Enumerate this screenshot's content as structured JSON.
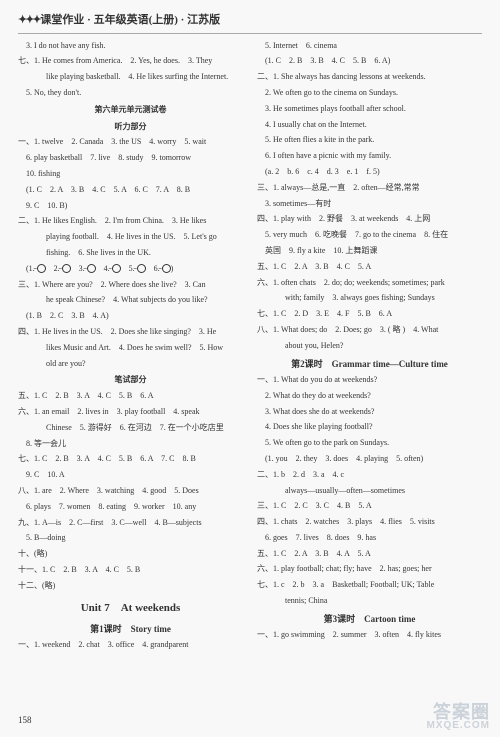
{
  "header": "课堂作业 · 五年级英语(上册) · 江苏版",
  "left": [
    {
      "cls": "line indent1",
      "t": "3. I do not have any fish."
    },
    {
      "cls": "line",
      "t": "七、1. He comes from America.　2. Yes, he does.　3. They"
    },
    {
      "cls": "line indent2",
      "t": "like playing basketball.　4. He likes surfing the Internet."
    },
    {
      "cls": "line indent1",
      "t": "5. No, they don't."
    },
    {
      "cls": "center",
      "t": "第六单元单元测试卷"
    },
    {
      "cls": "center",
      "t": "听力部分"
    },
    {
      "cls": "line",
      "t": "一、1. twelve　2. Canada　3. the US　4. worry　5. wait"
    },
    {
      "cls": "line indent1",
      "t": "6. play basketball　7. live　8. study　9. tomorrow"
    },
    {
      "cls": "line indent1",
      "t": "10. fishing"
    },
    {
      "cls": "line indent1",
      "t": "(1. C　2. A　3. B　4. C　5. A　6. C　7. A　8. B"
    },
    {
      "cls": "line indent1",
      "t": "9. C　10. B)"
    },
    {
      "cls": "line",
      "t": "二、1. He likes English.　2. I'm from China.　3. He likes"
    },
    {
      "cls": "line indent2",
      "t": "playing football.　4. He lives in the US.　5. Let's go"
    },
    {
      "cls": "line indent2",
      "t": "fishing.　6. She lives in the UK."
    },
    {
      "cls": "line indent1 faces",
      "t": ""
    },
    {
      "cls": "line",
      "t": "三、1. Where are you?　2. Where does she live?　3. Can"
    },
    {
      "cls": "line indent2",
      "t": "he speak Chinese?　4. What subjects do you like?"
    },
    {
      "cls": "line indent1",
      "t": "(1. B　2. C　3. B　4. A)"
    },
    {
      "cls": "line",
      "t": "四、1. He lives in the US.　2. Does she like singing?　3. He"
    },
    {
      "cls": "line indent2",
      "t": "likes Music and Art.　4. Does he swim well?　5. How"
    },
    {
      "cls": "line indent2",
      "t": "old are you?"
    },
    {
      "cls": "center",
      "t": "笔试部分"
    },
    {
      "cls": "line",
      "t": "五、1. C　2. B　3. A　4. C　5. B　6. A"
    },
    {
      "cls": "line",
      "t": "六、1. an email　2. lives in　3. play football　4. speak"
    },
    {
      "cls": "line indent2",
      "t": "Chinese　5. 游得好　6. 在河边　7. 在一个小吃店里"
    },
    {
      "cls": "line indent1",
      "t": "8. 等一会儿"
    },
    {
      "cls": "line",
      "t": "七、1. C　2. B　3. A　4. C　5. B　6. A　7. C　8. B"
    },
    {
      "cls": "line indent1",
      "t": "9. C　10. A"
    },
    {
      "cls": "line",
      "t": "八、1. are　2. Where　3. watching　4. good　5. Does"
    },
    {
      "cls": "line indent1",
      "t": "6. plays　7. women　8. eating　9. worker　10. any"
    },
    {
      "cls": "line",
      "t": "九、1. A—is　2. C—first　3. C—well　4. B—subjects"
    },
    {
      "cls": "line indent1",
      "t": "5. B—doing"
    },
    {
      "cls": "line",
      "t": "十、(略)"
    },
    {
      "cls": "line",
      "t": "十一、1. C　2. B　3. A　4. C　5. B"
    },
    {
      "cls": "line",
      "t": "十二、(略)"
    },
    {
      "cls": "unit-title",
      "t": "Unit 7　At weekends"
    },
    {
      "cls": "sub-title",
      "t": "第1课时　Story time"
    },
    {
      "cls": "line",
      "t": "一、1. weekend　2. chat　3. office　4. grandparent"
    }
  ],
  "right": [
    {
      "cls": "line indent1",
      "t": "5. Internet　6. cinema"
    },
    {
      "cls": "line indent1",
      "t": "(1. C　2. B　3. B　4. C　5. B　6. A)"
    },
    {
      "cls": "line",
      "t": "二、1. She always has dancing lessons at weekends."
    },
    {
      "cls": "line indent1",
      "t": "2. We often go to the cinema on Sundays."
    },
    {
      "cls": "line indent1",
      "t": "3. He sometimes plays football after school."
    },
    {
      "cls": "line indent1",
      "t": "4. I usually chat on the Internet."
    },
    {
      "cls": "line indent1",
      "t": "5. He often flies a kite in the park."
    },
    {
      "cls": "line indent1",
      "t": "6. I often have a picnic with my family."
    },
    {
      "cls": "line indent1",
      "t": "(a. 2　b. 6　c. 4　d. 3　e. 1　f. 5)"
    },
    {
      "cls": "line",
      "t": "三、1. always—总是,一直　2. often—经常,常常"
    },
    {
      "cls": "line indent1",
      "t": "3. sometimes—有时"
    },
    {
      "cls": "line",
      "t": "四、1. play with　2. 野餐　3. at weekends　4. 上网"
    },
    {
      "cls": "line indent1",
      "t": "5. very much　6. 吃晚餐　7. go to the cinema　8. 住在"
    },
    {
      "cls": "line indent1",
      "t": "英国　9. fly a kite　10. 上舞蹈课"
    },
    {
      "cls": "line",
      "t": "五、1. C　2. A　3. B　4. C　5. A"
    },
    {
      "cls": "line",
      "t": "六、1. often chats　2. do; do; weekends; sometimes; park"
    },
    {
      "cls": "line indent2",
      "t": "with; family　3. always goes fishing; Sundays"
    },
    {
      "cls": "line",
      "t": "七、1. C　2. D　3. E　4. F　5. B　6. A"
    },
    {
      "cls": "line",
      "t": "八、1. What does; do　2. Does; go　3. ( 略 )　4. What"
    },
    {
      "cls": "line indent2",
      "t": "about you, Helen?"
    },
    {
      "cls": "sub-title",
      "t": "第2课时　Grammar time—Culture time"
    },
    {
      "cls": "line",
      "t": "一、1. What do you do at weekends?"
    },
    {
      "cls": "line indent1",
      "t": "2. What do they do at weekends?"
    },
    {
      "cls": "line indent1",
      "t": "3. What does she do at weekends?"
    },
    {
      "cls": "line indent1",
      "t": "4. Does she like playing football?"
    },
    {
      "cls": "line indent1",
      "t": "5. We often go to the park on Sundays."
    },
    {
      "cls": "line indent1",
      "t": "(1. you　2. they　3. does　4. playing　5. often)"
    },
    {
      "cls": "line",
      "t": "二、1. b　2. d　3. a　4. c"
    },
    {
      "cls": "line indent2",
      "t": "always—usually—often—sometimes"
    },
    {
      "cls": "line",
      "t": "三、1. C　2. C　3. C　4. B　5. A"
    },
    {
      "cls": "line",
      "t": "四、1. chats　2. watches　3. plays　4. flies　5. visits"
    },
    {
      "cls": "line indent1",
      "t": "6. goes　7. lives　8. does　9. has"
    },
    {
      "cls": "line",
      "t": "五、1. C　2. A　3. B　4. A　5. A"
    },
    {
      "cls": "line",
      "t": "六、1. play football; chat; fly; have　2. has; goes; her"
    },
    {
      "cls": "line",
      "t": "七、1. c　2. b　3. a　Basketball; Football; UK; Table"
    },
    {
      "cls": "line indent2",
      "t": "tennis; China"
    },
    {
      "cls": "sub-title",
      "t": "第3课时　Cartoon time"
    },
    {
      "cls": "line",
      "t": "一、1. go swimming　2. summer　3. often　4. fly kites"
    }
  ],
  "faces_line_prefix": "(1. ",
  "faces_parts": [
    "　2. ",
    "　3. ",
    "　4. ",
    "　5. ",
    "　6. ",
    ")"
  ],
  "page_num": "158",
  "watermark_top": "答案圈",
  "watermark_bottom": "MXQE.COM"
}
